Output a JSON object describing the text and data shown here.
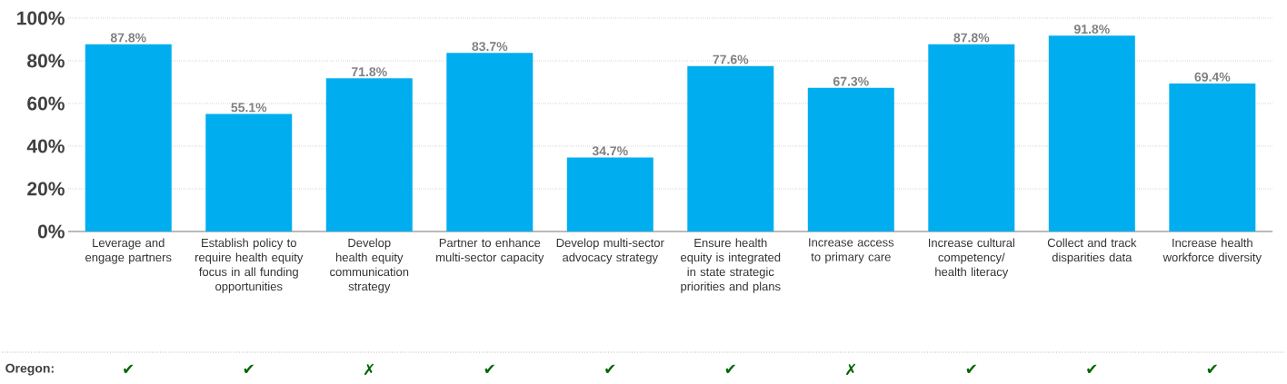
{
  "chart_data": {
    "type": "bar",
    "categories": [
      "Leverage and engage partners",
      "Establish policy to require health equity focus in all funding opportunities",
      "Develop health equity communication strategy",
      "Partner to enhance multi-sector capacity",
      "Develop multi-sector advocacy strategy",
      "Ensure health equity is integrated in state strategic priorities and plans",
      "Increase access to primary care",
      "Increase cultural competency/ health literacy",
      "Collect and track disparities data",
      "Increase health workforce diversity"
    ],
    "values": [
      87.8,
      55.1,
      71.8,
      83.7,
      34.7,
      77.6,
      67.3,
      87.8,
      91.8,
      69.4
    ],
    "value_labels": [
      "87.8%",
      "55.1%",
      "71.8%",
      "83.7%",
      "34.7%",
      "77.6%",
      "67.3%",
      "87.8%",
      "91.8%",
      "69.4%"
    ],
    "color": "#00aeef",
    "ylim": [
      0,
      100
    ],
    "yticks": [
      {
        "value": 0,
        "label": "0%"
      },
      {
        "value": 20,
        "label": "20%"
      },
      {
        "value": 40,
        "label": "40%"
      },
      {
        "value": 60,
        "label": "60%"
      },
      {
        "value": 80,
        "label": "80%"
      },
      {
        "value": 100,
        "label": "100%"
      }
    ],
    "grid": "y",
    "annotations": [
      "Oregon:",
      "✔",
      "✔",
      "✗",
      "✔",
      "✔",
      "✔",
      "✗",
      "✔",
      "✔",
      "✔"
    ]
  }
}
